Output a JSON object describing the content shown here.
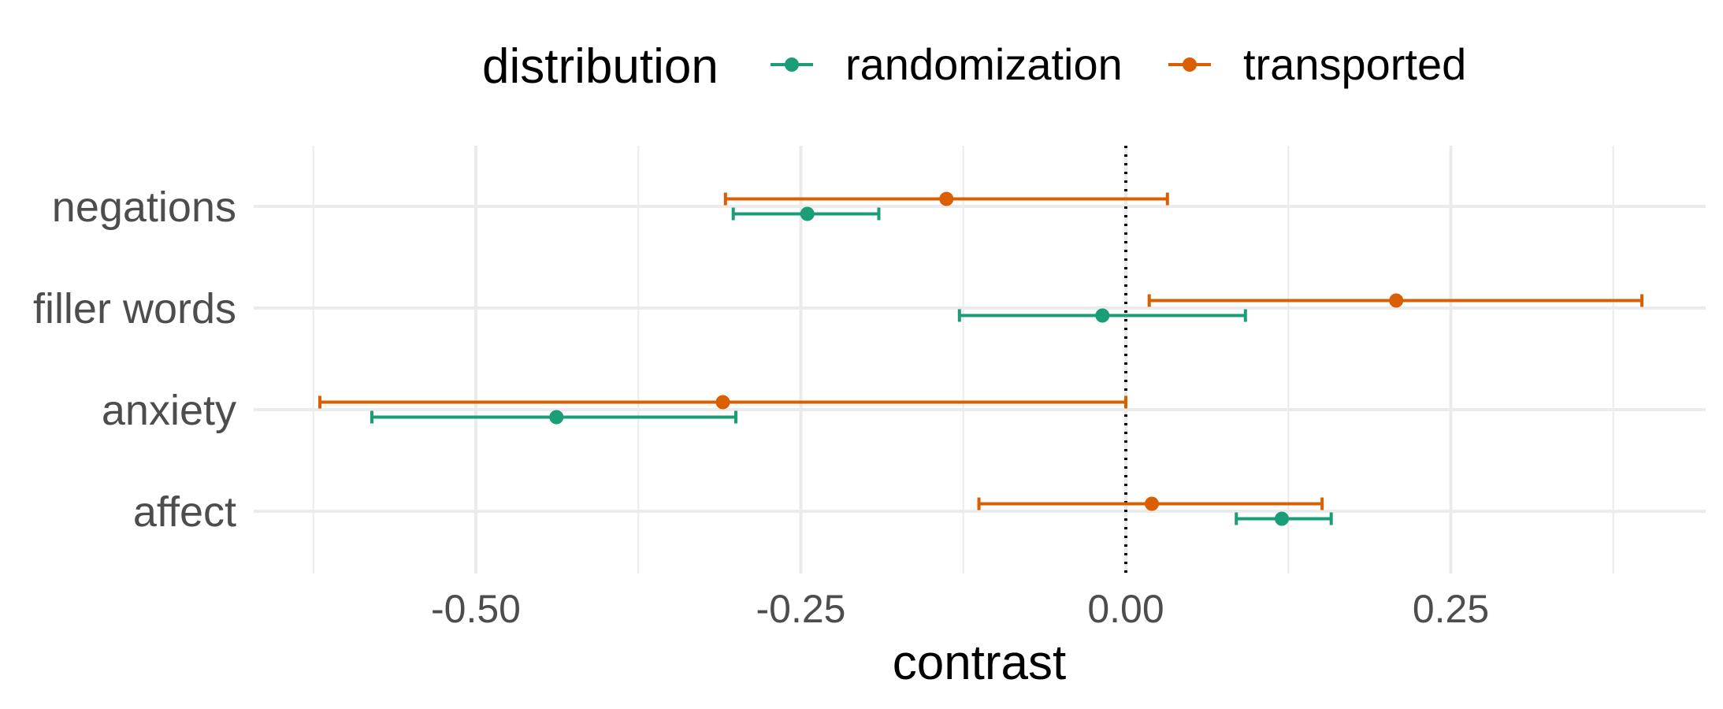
{
  "chart_data": {
    "type": "errorbar",
    "orientation": "horizontal",
    "xlabel": "contrast",
    "ylabel": "",
    "xlim": [
      -0.625,
      0.445
    ],
    "xticks": [
      -0.5,
      -0.25,
      0.0,
      0.25
    ],
    "xtick_labels": [
      "-0.50",
      "-0.25",
      "0.00",
      "0.25"
    ],
    "reference_line": {
      "x": 0.0,
      "style": "dotted"
    },
    "grid": true,
    "legend": {
      "title": "distribution",
      "position": "top"
    },
    "categories": [
      "negations",
      "filler words",
      "anxiety",
      "affect"
    ],
    "series": [
      {
        "name": "randomization",
        "color": "#1b9e77",
        "points": [
          {
            "category": "negations",
            "estimate": -0.245,
            "lower": -0.302,
            "upper": -0.19
          },
          {
            "category": "filler words",
            "estimate": -0.018,
            "lower": -0.128,
            "upper": 0.092
          },
          {
            "category": "anxiety",
            "estimate": -0.438,
            "lower": -0.58,
            "upper": -0.3
          },
          {
            "category": "affect",
            "estimate": 0.12,
            "lower": 0.085,
            "upper": 0.158
          }
        ]
      },
      {
        "name": "transported",
        "color": "#d95f02",
        "points": [
          {
            "category": "negations",
            "estimate": -0.138,
            "lower": -0.308,
            "upper": 0.032
          },
          {
            "category": "filler words",
            "estimate": 0.208,
            "lower": 0.018,
            "upper": 0.397
          },
          {
            "category": "anxiety",
            "estimate": -0.31,
            "lower": -0.62,
            "upper": 0.0
          },
          {
            "category": "affect",
            "estimate": 0.02,
            "lower": -0.113,
            "upper": 0.151
          }
        ]
      }
    ]
  }
}
